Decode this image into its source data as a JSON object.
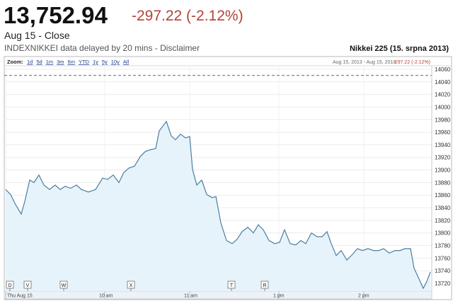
{
  "header": {
    "price": "13,752.94",
    "change": "-297.22 (-2.12%)",
    "date": "Aug 15 - Close",
    "source": "INDEXNIKKEI data delayed by 20 mins - Disclaimer",
    "chart_name": "Nikkei 225 (15. srpna 2013)"
  },
  "toolbar": {
    "zoom_label": "Zoom:",
    "ranges": [
      "1d",
      "5d",
      "1m",
      "3m",
      "6m",
      "YTD",
      "1y",
      "5y",
      "10y",
      "All"
    ],
    "date_range": "Aug 15, 2013 - Aug 15, 2013",
    "change": "-297.22 (-2.12%)"
  },
  "chart_data": {
    "type": "area",
    "color": "#4b7ea0",
    "fill_color": "#e6f3fb",
    "x": [
      0,
      3.5,
      7,
      11,
      13.5,
      17,
      20,
      23.5,
      27,
      31,
      35,
      38.5,
      42,
      46,
      50,
      53.5,
      58.5,
      63.5,
      68.5,
      72,
      76,
      80,
      83.5,
      87,
      91,
      95,
      98.5,
      102,
      106,
      108.5,
      113.5,
      117,
      120,
      123.5,
      127,
      130,
      132,
      135,
      138.5,
      142,
      146,
      148.5,
      152,
      156,
      160,
      163.5,
      167,
      171,
      175,
      178.5,
      182,
      186,
      190,
      193.5,
      197,
      201,
      205,
      208.5,
      212,
      216,
      220,
      223.5,
      227,
      230,
      233.5,
      237,
      241,
      245,
      248.5,
      252,
      256,
      260,
      263.5,
      267,
      271,
      275,
      278.5,
      282,
      286,
      288.5,
      292,
      295,
      297.5,
      300
    ],
    "values": [
      13869,
      13861,
      13845,
      13830,
      13850,
      13884,
      13880,
      13892,
      13876,
      13869,
      13876,
      13869,
      13874,
      13871,
      13876,
      13869,
      13865,
      13869,
      13887,
      13885,
      13892,
      13880,
      13896,
      13903,
      13906,
      13921,
      13929,
      13932,
      13934,
      13962,
      13977,
      13954,
      13948,
      13957,
      13951,
      13953,
      13901,
      13876,
      13884,
      13861,
      13856,
      13858,
      13816,
      13788,
      13783,
      13790,
      13802,
      13809,
      13800,
      13813,
      13805,
      13788,
      13783,
      13785,
      13805,
      13783,
      13781,
      13788,
      13783,
      13800,
      13794,
      13794,
      13802,
      13783,
      13764,
      13772,
      13757,
      13766,
      13775,
      13772,
      13775,
      13772,
      13772,
      13775,
      13768,
      13772,
      13772,
      13775,
      13775,
      13744,
      13727,
      13712,
      13723,
      13738
    ],
    "xlim": [
      0,
      301
    ],
    "xticks": [
      {
        "value": 0,
        "label": "Thu Aug 15"
      },
      {
        "value": 70,
        "label": "10 am"
      },
      {
        "value": 130,
        "label": "11 am"
      },
      {
        "value": 193,
        "label": "1 pm"
      },
      {
        "value": 253,
        "label": "2 pm"
      }
    ],
    "ylim": [
      13707.6,
      14065.6
    ],
    "yticks": [
      13720,
      13740,
      13760,
      13780,
      13800,
      13820,
      13840,
      13860,
      13880,
      13900,
      13920,
      13940,
      13960,
      13980,
      14000,
      14020,
      14040,
      14060
    ],
    "grid": true,
    "previous_close": 14050.16,
    "events": [
      {
        "label": "D",
        "x": 3
      },
      {
        "label": "V",
        "x": 15.5
      },
      {
        "label": "W",
        "x": 41
      },
      {
        "label": "X",
        "x": 88.5
      },
      {
        "label": "T",
        "x": 159.5
      },
      {
        "label": "R",
        "x": 183
      }
    ]
  }
}
